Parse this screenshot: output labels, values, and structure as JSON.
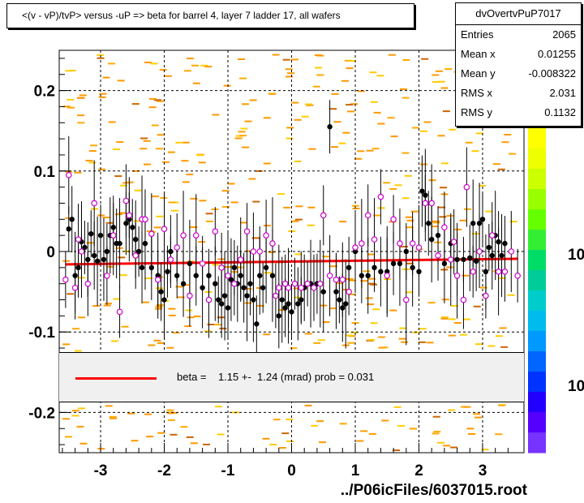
{
  "title": "<(v - vP)/tvP> versus  -uP => beta for barrel 4, layer 7 ladder 17, all wafers",
  "stats": {
    "name": "dvOvertvPuP7017",
    "rows": [
      {
        "key": "Entries",
        "value": "2065"
      },
      {
        "key": "Mean x",
        "value": "0.01255"
      },
      {
        "key": "Mean y",
        "value": "-0.008322"
      },
      {
        "key": "RMS x",
        "value": "2.031"
      },
      {
        "key": "RMS y",
        "value": "0.1132"
      }
    ]
  },
  "fit_legend": "beta =    1.15 +-  1.24 (mrad) prob = 0.031",
  "file_label": "../P06icFiles/6037015.root",
  "palette_labels": [
    "10",
    "10"
  ],
  "chart_data": {
    "type": "scatter",
    "xlim": [
      -3.65,
      3.65
    ],
    "ylim": [
      -0.25,
      0.25
    ],
    "x_ticks": [
      -3,
      -2,
      -1,
      0,
      1,
      2,
      3
    ],
    "x_tick_labels": [
      "-3",
      "-2",
      "-1",
      "0",
      "1",
      "2",
      "3"
    ],
    "y_ticks": [
      -0.2,
      -0.1,
      0,
      0.1,
      0.2
    ],
    "y_tick_labels": [
      "-0.2",
      "-0.1",
      "0",
      "0.1",
      "0.2"
    ],
    "grid": true,
    "fit_line": {
      "color": "#ff0000",
      "x": [
        -3.55,
        3.55
      ],
      "y": [
        -0.016,
        -0.009
      ]
    },
    "series": [
      {
        "marker": "filled-circle",
        "color": "#000000",
        "points": [
          [
            -3.5,
            0.028
          ],
          [
            -3.45,
            0.04
          ],
          [
            -3.4,
            -0.03
          ],
          [
            -3.35,
            -0.02
          ],
          [
            -3.3,
            0.012
          ],
          [
            -3.25,
            0.005
          ],
          [
            -3.2,
            -0.01
          ],
          [
            -3.15,
            0.022
          ],
          [
            -3.1,
            -0.005
          ],
          [
            -3.05,
            -0.012
          ],
          [
            -3.0,
            0.02
          ],
          [
            -2.95,
            -0.01
          ],
          [
            -2.9,
            0.0
          ],
          [
            -2.85,
            0.02
          ],
          [
            -2.8,
            0.03
          ],
          [
            -2.75,
            0.01
          ],
          [
            -2.7,
            0.01
          ],
          [
            -2.6,
            0.035
          ],
          [
            -2.55,
            0.04
          ],
          [
            -2.5,
            0.03
          ],
          [
            -2.45,
            0.015
          ],
          [
            -2.4,
            0.0
          ],
          [
            -2.35,
            -0.02
          ],
          [
            -2.3,
            0.01
          ],
          [
            -2.2,
            -0.02
          ],
          [
            -2.1,
            -0.03
          ],
          [
            -2.05,
            -0.05
          ],
          [
            -2.0,
            -0.06
          ],
          [
            -1.95,
            -0.025
          ],
          [
            -1.9,
            0.0
          ],
          [
            -1.8,
            -0.03
          ],
          [
            -1.7,
            -0.04
          ],
          [
            -1.6,
            -0.015
          ],
          [
            -1.5,
            -0.03
          ],
          [
            -1.4,
            -0.045
          ],
          [
            -1.3,
            -0.03
          ],
          [
            -1.2,
            -0.04
          ],
          [
            -1.15,
            -0.06
          ],
          [
            -1.1,
            -0.065
          ],
          [
            -1.05,
            -0.055
          ],
          [
            -1.0,
            -0.07
          ],
          [
            -0.95,
            -0.035
          ],
          [
            -0.9,
            -0.02
          ],
          [
            -0.85,
            -0.04
          ],
          [
            -0.8,
            -0.03
          ],
          [
            -0.75,
            -0.045
          ],
          [
            -0.7,
            -0.055
          ],
          [
            -0.65,
            -0.04
          ],
          [
            -0.6,
            -0.06
          ],
          [
            -0.55,
            -0.09
          ],
          [
            -0.5,
            -0.03
          ],
          [
            -0.45,
            -0.045
          ],
          [
            -0.4,
            -0.02
          ],
          [
            -0.3,
            -0.03
          ],
          [
            -0.2,
            -0.08
          ],
          [
            -0.15,
            -0.06
          ],
          [
            -0.1,
            -0.07
          ],
          [
            -0.05,
            -0.065
          ],
          [
            0.0,
            -0.075
          ],
          [
            0.1,
            -0.065
          ],
          [
            0.15,
            -0.06
          ],
          [
            0.2,
            -0.045
          ],
          [
            0.3,
            -0.04
          ],
          [
            0.4,
            -0.04
          ],
          [
            0.5,
            -0.05
          ],
          [
            0.6,
            0.155
          ],
          [
            0.7,
            -0.05
          ],
          [
            0.75,
            -0.06
          ],
          [
            0.8,
            -0.07
          ],
          [
            0.85,
            -0.065
          ],
          [
            0.9,
            -0.02
          ],
          [
            1.0,
            0.0
          ],
          [
            1.1,
            -0.03
          ],
          [
            1.2,
            -0.03
          ],
          [
            1.3,
            -0.02
          ],
          [
            1.4,
            -0.025
          ],
          [
            1.5,
            -0.025
          ],
          [
            1.6,
            -0.015
          ],
          [
            1.7,
            -0.015
          ],
          [
            1.8,
            0.0
          ],
          [
            1.9,
            -0.02
          ],
          [
            2.0,
            -0.025
          ],
          [
            2.05,
            0.075
          ],
          [
            2.1,
            0.07
          ],
          [
            2.15,
            0.035
          ],
          [
            2.2,
            0.015
          ],
          [
            2.3,
            0.02
          ],
          [
            2.4,
            -0.015
          ],
          [
            2.5,
            0.01
          ],
          [
            2.6,
            -0.01
          ],
          [
            2.7,
            -0.01
          ],
          [
            2.8,
            -0.008
          ],
          [
            2.85,
            0.035
          ],
          [
            2.9,
            -0.012
          ],
          [
            2.95,
            0.035
          ],
          [
            3.0,
            0.04
          ],
          [
            3.05,
            -0.025
          ],
          [
            3.1,
            0.005
          ],
          [
            3.15,
            -0.005
          ],
          [
            3.2,
            0.02
          ],
          [
            3.25,
            0.012
          ],
          [
            3.3,
            -0.005
          ],
          [
            3.35,
            0.01
          ]
        ]
      },
      {
        "marker": "open-circle",
        "color": "#cc00cc",
        "points": [
          [
            -3.55,
            -0.035
          ],
          [
            -3.5,
            0.095
          ],
          [
            -3.4,
            -0.045
          ],
          [
            -3.35,
            0.015
          ],
          [
            -3.3,
            0.0
          ],
          [
            -3.2,
            -0.04
          ],
          [
            -3.1,
            0.06
          ],
          [
            -2.9,
            -0.03
          ],
          [
            -2.8,
            0.02
          ],
          [
            -2.7,
            -0.075
          ],
          [
            -2.6,
            0.063
          ],
          [
            -2.55,
            0.045
          ],
          [
            -2.45,
            -0.005
          ],
          [
            -2.35,
            0.04
          ],
          [
            -2.3,
            0.04
          ],
          [
            -2.2,
            0.022
          ],
          [
            -2.1,
            -0.035
          ],
          [
            -2.0,
            0.028
          ],
          [
            -1.9,
            -0.01
          ],
          [
            -1.8,
            0.005
          ],
          [
            -1.7,
            0.02
          ],
          [
            -1.6,
            -0.055
          ],
          [
            -1.5,
            0.02
          ],
          [
            -1.4,
            -0.015
          ],
          [
            -1.3,
            -0.06
          ],
          [
            -1.2,
            0.025
          ],
          [
            -1.1,
            -0.02
          ],
          [
            -1.0,
            -0.03
          ],
          [
            -0.9,
            -0.04
          ],
          [
            -0.8,
            -0.01
          ],
          [
            -0.7,
            0.025
          ],
          [
            -0.6,
            0.0
          ],
          [
            -0.5,
            0.0
          ],
          [
            -0.4,
            0.02
          ],
          [
            -0.3,
            0.01
          ],
          [
            -0.25,
            -0.055
          ],
          [
            -0.2,
            -0.045
          ],
          [
            -0.1,
            -0.04
          ],
          [
            -0.05,
            -0.045
          ],
          [
            0.05,
            -0.04
          ],
          [
            0.15,
            -0.045
          ],
          [
            0.25,
            -0.04
          ],
          [
            0.35,
            -0.045
          ],
          [
            0.45,
            -0.04
          ],
          [
            0.5,
            0.045
          ],
          [
            0.6,
            -0.03
          ],
          [
            0.7,
            -0.035
          ],
          [
            0.8,
            -0.035
          ],
          [
            0.9,
            -0.05
          ],
          [
            1.0,
            0.005
          ],
          [
            1.1,
            0.01
          ],
          [
            1.2,
            0.045
          ],
          [
            1.3,
            0.015
          ],
          [
            1.4,
            0.068
          ],
          [
            1.5,
            -0.03
          ],
          [
            1.6,
            0.04
          ],
          [
            1.7,
            0.01
          ],
          [
            1.8,
            -0.06
          ],
          [
            1.9,
            0.01
          ],
          [
            2.0,
            0.005
          ],
          [
            2.1,
            0.06
          ],
          [
            2.2,
            0.06
          ],
          [
            2.3,
            -0.005
          ],
          [
            2.4,
            0.03
          ],
          [
            2.5,
            -0.01
          ],
          [
            2.55,
            0.012
          ],
          [
            2.6,
            -0.03
          ],
          [
            2.7,
            -0.06
          ],
          [
            2.75,
            0.08
          ],
          [
            2.85,
            -0.025
          ],
          [
            2.95,
            0.0
          ],
          [
            3.05,
            -0.055
          ],
          [
            3.15,
            0.02
          ],
          [
            3.25,
            -0.025
          ],
          [
            3.35,
            -0.025
          ],
          [
            3.45,
            0.0
          ],
          [
            3.55,
            -0.03
          ]
        ]
      }
    ]
  }
}
